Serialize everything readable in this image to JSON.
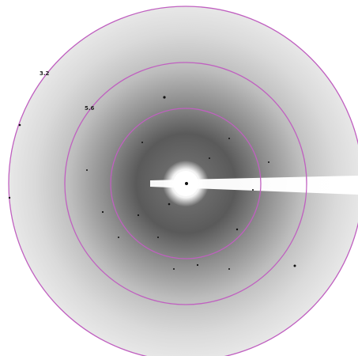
{
  "ring_labels": [
    "3.2",
    "5.6"
  ]
}
